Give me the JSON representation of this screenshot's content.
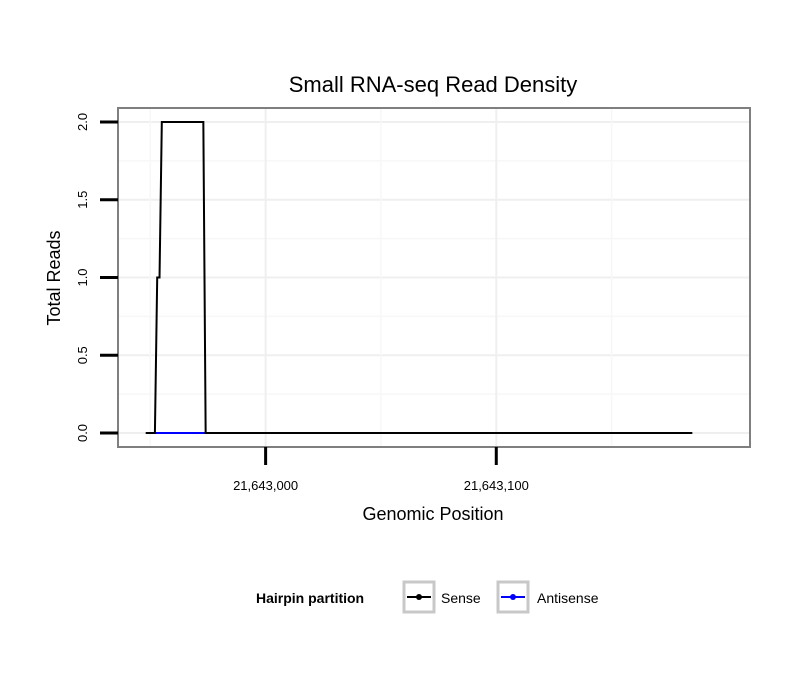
{
  "chart_data": {
    "type": "line",
    "title": "Small RNA-seq Read Density",
    "xlabel": "Genomic Position",
    "ylabel": "Total Reads",
    "xlim": [
      21642936,
      21643210
    ],
    "ylim": [
      -0.09,
      2.09
    ],
    "x_ticks": [
      {
        "value": 21643000,
        "label": "21,643,000"
      },
      {
        "value": 21643100,
        "label": "21,643,100"
      }
    ],
    "y_ticks": [
      {
        "value": 0.0,
        "label": "0.0"
      },
      {
        "value": 0.5,
        "label": "0.5"
      },
      {
        "value": 1.0,
        "label": "1.0"
      },
      {
        "value": 1.5,
        "label": "1.5"
      },
      {
        "value": 2.0,
        "label": "2.0"
      }
    ],
    "grid": true,
    "legend": {
      "position": "bottom",
      "title": "Hairpin partition",
      "entries": [
        "Sense",
        "Antisense"
      ]
    },
    "series": [
      {
        "name": "Sense",
        "color": "#000000",
        "points": [
          [
            21642948,
            0
          ],
          [
            21642952,
            0
          ],
          [
            21642953,
            1
          ],
          [
            21642954,
            1
          ],
          [
            21642955,
            2
          ],
          [
            21642973,
            2
          ],
          [
            21642974,
            0
          ],
          [
            21643185,
            0
          ]
        ]
      },
      {
        "name": "Antisense",
        "color": "#0000ff",
        "points": [
          [
            21642952,
            0
          ],
          [
            21642974,
            0
          ]
        ]
      }
    ]
  }
}
